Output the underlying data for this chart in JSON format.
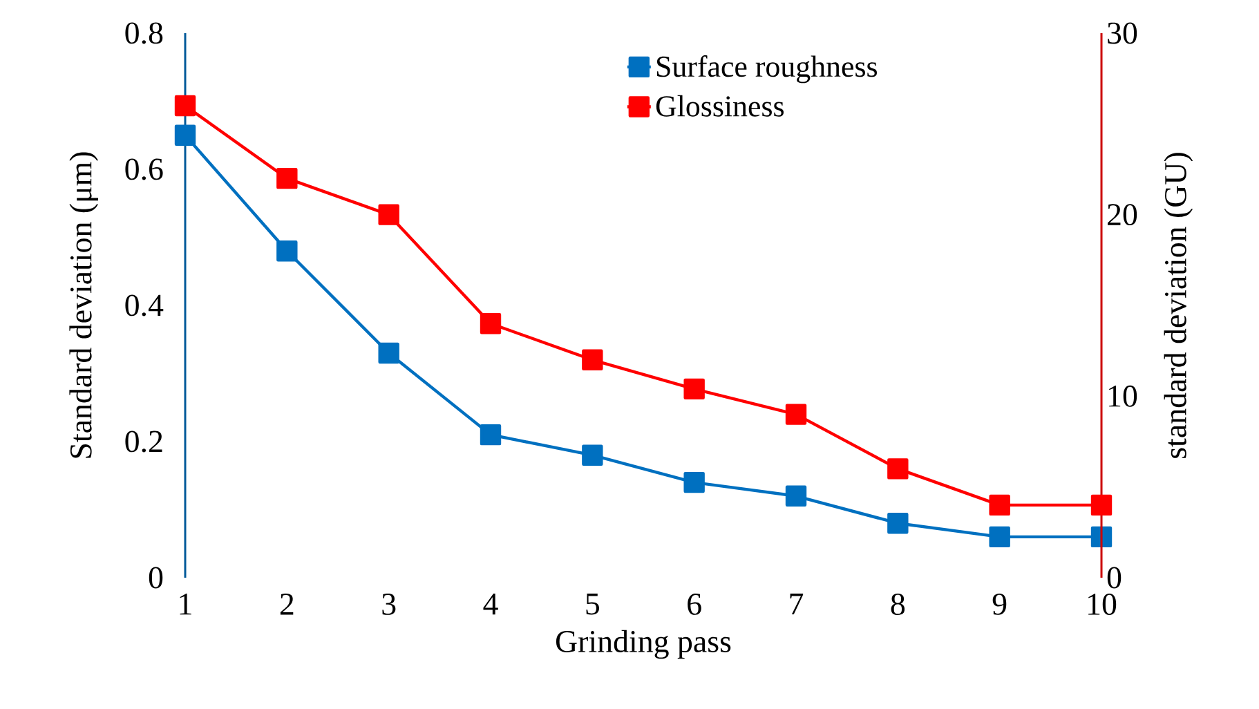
{
  "chart_data": {
    "type": "line",
    "xlabel": "Grinding pass",
    "ylabel": "Standard deviation (μm)",
    "y2label": "standard deviation (GU)",
    "x": [
      1,
      2,
      3,
      4,
      5,
      6,
      7,
      8,
      9,
      10
    ],
    "series": [
      {
        "name": "Surface roughness",
        "color": "#0070c0",
        "values": [
          0.65,
          0.48,
          0.33,
          0.21,
          0.18,
          0.14,
          0.12,
          0.08,
          0.06,
          0.06
        ]
      },
      {
        "name": "Glossiness",
        "color": "#ff0000",
        "axis": "y2",
        "values": [
          26,
          22,
          20,
          14,
          12,
          10.4,
          9,
          6,
          4,
          4
        ]
      }
    ],
    "xlim": [
      1,
      10
    ],
    "xticks": [
      1,
      2,
      3,
      4,
      5,
      6,
      7,
      8,
      9,
      10
    ],
    "ylim": [
      0,
      0.8
    ],
    "yticks": [
      0,
      0.2,
      0.4,
      0.6,
      0.8
    ],
    "y2lim": [
      0,
      30
    ],
    "y2ticks": [
      0,
      10,
      20,
      30
    ],
    "legend": "top",
    "marker": "square",
    "line_style": "solid"
  }
}
